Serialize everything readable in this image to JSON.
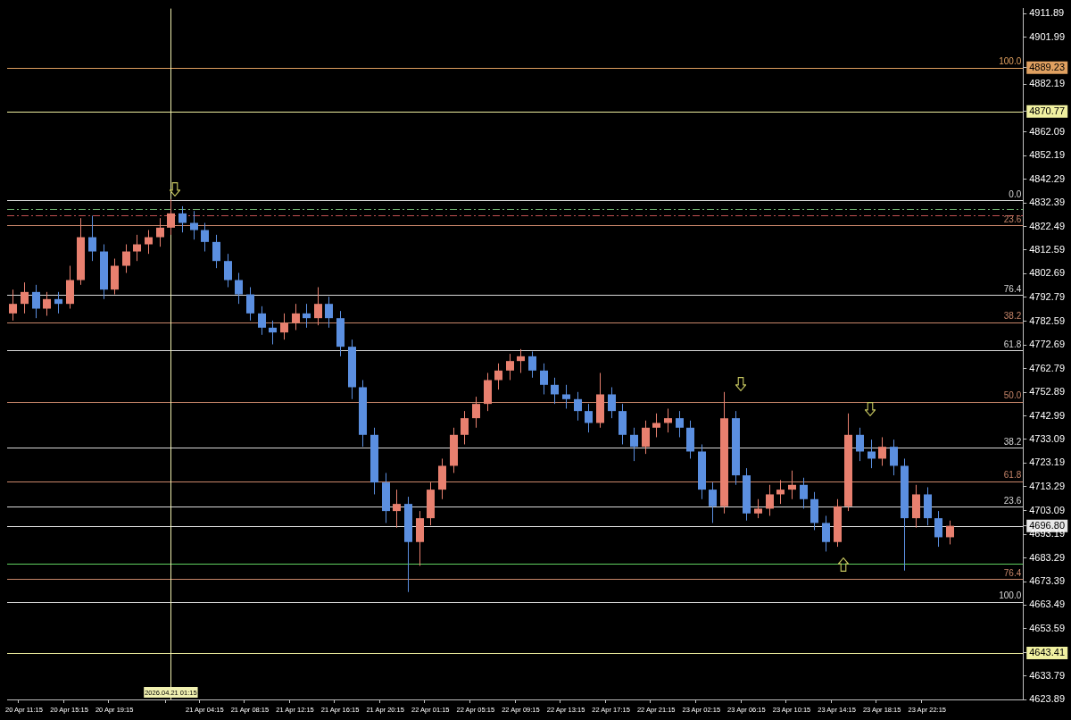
{
  "chart_data": {
    "type": "candlestick",
    "categories": [
      null,
      "20 Apr 11:15",
      null,
      null,
      null,
      "20 Apr 15:15",
      null,
      null,
      null,
      "20 Apr 19:15",
      null,
      null,
      null,
      null,
      "2026.04.21 01:15",
      null,
      null,
      "21 Apr 04:15",
      null,
      null,
      null,
      "21 Apr 08:15",
      null,
      null,
      null,
      "21 Apr 12:15",
      null,
      null,
      null,
      "21 Apr 16:15",
      null,
      null,
      null,
      "21 Apr 20:15",
      null,
      null,
      null,
      "22 Apr 01:15",
      null,
      null,
      null,
      "22 Apr 05:15",
      null,
      null,
      null,
      "22 Apr 09:15",
      null,
      null,
      null,
      "22 Apr 13:15",
      null,
      null,
      null,
      "22 Apr 17:15",
      null,
      null,
      null,
      "22 Apr 21:15",
      null,
      null,
      null,
      "23 Apr 02:15",
      null,
      null,
      null,
      "23 Apr 06:15",
      null,
      null,
      null,
      "23 Apr 10:15",
      null,
      null,
      null,
      "23 Apr 14:15",
      null,
      null,
      null,
      "23 Apr 18:15",
      null,
      null,
      null,
      "23 Apr 22:15",
      null,
      null,
      null,
      null,
      null,
      null,
      null,
      null
    ],
    "ohlc": [
      [
        4786,
        4796,
        4783,
        4790
      ],
      [
        4790,
        4799,
        4786,
        4795
      ],
      [
        4795,
        4798,
        4784,
        4788
      ],
      [
        4788,
        4795,
        4785,
        4792
      ],
      [
        4792,
        4795,
        4786,
        4790
      ],
      [
        4790,
        4806,
        4788,
        4800
      ],
      [
        4800,
        4826,
        4798,
        4818
      ],
      [
        4818,
        4827,
        4808,
        4812
      ],
      [
        4812,
        4815,
        4792,
        4796
      ],
      [
        4796,
        4809,
        4794,
        4806
      ],
      [
        4806,
        4815,
        4803,
        4812
      ],
      [
        4812,
        4819,
        4808,
        4815
      ],
      [
        4815,
        4821,
        4811,
        4818
      ],
      [
        4818,
        4826,
        4814,
        4822
      ],
      [
        4822,
        4834,
        4819,
        4828
      ],
      [
        4828,
        4831,
        4820,
        4824
      ],
      [
        4824,
        4829,
        4817,
        4821
      ],
      [
        4821,
        4824,
        4812,
        4816
      ],
      [
        4816,
        4819,
        4805,
        4808
      ],
      [
        4808,
        4811,
        4797,
        4800
      ],
      [
        4800,
        4803,
        4790,
        4794
      ],
      [
        4794,
        4797,
        4783,
        4786
      ],
      [
        4786,
        4789,
        4777,
        4780
      ],
      [
        4780,
        4783,
        4773,
        4778
      ],
      [
        4778,
        4786,
        4775,
        4782
      ],
      [
        4782,
        4790,
        4779,
        4786
      ],
      [
        4786,
        4790,
        4780,
        4784
      ],
      [
        4784,
        4797,
        4781,
        4790
      ],
      [
        4790,
        4793,
        4780,
        4784
      ],
      [
        4784,
        4787,
        4768,
        4772
      ],
      [
        4772,
        4775,
        4750,
        4755
      ],
      [
        4755,
        4758,
        4730,
        4735
      ],
      [
        4735,
        4738,
        4710,
        4715
      ],
      [
        4715,
        4719,
        4698,
        4703
      ],
      [
        4703,
        4712,
        4696,
        4706
      ],
      [
        4706,
        4709,
        4669,
        4690
      ],
      [
        4690,
        4703,
        4680,
        4700
      ],
      [
        4700,
        4715,
        4697,
        4712
      ],
      [
        4712,
        4725,
        4708,
        4722
      ],
      [
        4722,
        4738,
        4719,
        4735
      ],
      [
        4735,
        4745,
        4731,
        4742
      ],
      [
        4742,
        4751,
        4738,
        4748
      ],
      [
        4748,
        4761,
        4745,
        4758
      ],
      [
        4758,
        4765,
        4754,
        4762
      ],
      [
        4762,
        4769,
        4758,
        4766
      ],
      [
        4766,
        4771,
        4761,
        4768
      ],
      [
        4768,
        4770,
        4759,
        4762
      ],
      [
        4762,
        4765,
        4752,
        4756
      ],
      [
        4756,
        4759,
        4748,
        4752
      ],
      [
        4752,
        4756,
        4746,
        4750
      ],
      [
        4750,
        4753,
        4741,
        4745
      ],
      [
        4745,
        4748,
        4736,
        4740
      ],
      [
        4740,
        4761,
        4738,
        4752
      ],
      [
        4752,
        4755,
        4742,
        4745
      ],
      [
        4745,
        4748,
        4731,
        4735
      ],
      [
        4735,
        4738,
        4724,
        4730
      ],
      [
        4730,
        4741,
        4727,
        4738
      ],
      [
        4738,
        4744,
        4734,
        4740
      ],
      [
        4740,
        4746,
        4736,
        4742
      ],
      [
        4742,
        4745,
        4734,
        4738
      ],
      [
        4738,
        4741,
        4725,
        4728
      ],
      [
        4728,
        4731,
        4708,
        4712
      ],
      [
        4712,
        4715,
        4698,
        4705
      ],
      [
        4705,
        4753,
        4702,
        4742
      ],
      [
        4742,
        4745,
        4714,
        4718
      ],
      [
        4718,
        4721,
        4699,
        4702
      ],
      [
        4702,
        4708,
        4700,
        4704
      ],
      [
        4704,
        4714,
        4701,
        4710
      ],
      [
        4710,
        4716,
        4706,
        4712
      ],
      [
        4712,
        4720,
        4708,
        4714
      ],
      [
        4714,
        4717,
        4704,
        4708
      ],
      [
        4708,
        4711,
        4695,
        4698
      ],
      [
        4698,
        4701,
        4686,
        4690
      ],
      [
        4690,
        4708,
        4688,
        4705
      ],
      [
        4705,
        4744,
        4703,
        4735
      ],
      [
        4735,
        4738,
        4724,
        4728
      ],
      [
        4728,
        4733,
        4721,
        4725
      ],
      [
        4725,
        4734,
        4722,
        4730
      ],
      [
        4730,
        4733,
        4718,
        4722
      ],
      [
        4722,
        4725,
        4678,
        4700
      ],
      [
        4700,
        4714,
        4696,
        4710
      ],
      [
        4710,
        4713,
        4697,
        4700
      ],
      [
        4700,
        4703,
        4688,
        4692
      ],
      [
        4692,
        4699,
        4689,
        4696.8
      ],
      null,
      null,
      null,
      null,
      null,
      null
    ],
    "colors": [
      "#e8806f",
      "#e8806f",
      "#5b8fe0",
      "#e8806f",
      "#5b8fe0",
      "#e8806f",
      "#e8806f",
      "#5b8fe0",
      "#5b8fe0",
      "#e8806f",
      "#e8806f",
      "#e8806f",
      "#e8806f",
      "#e8806f",
      "#e8806f",
      "#5b8fe0",
      "#5b8fe0",
      "#5b8fe0",
      "#5b8fe0",
      "#5b8fe0",
      "#5b8fe0",
      "#5b8fe0",
      "#5b8fe0",
      "#5b8fe0",
      "#e8806f",
      "#e8806f",
      "#5b8fe0",
      "#e8806f",
      "#5b8fe0",
      "#5b8fe0",
      "#5b8fe0",
      "#5b8fe0",
      "#5b8fe0",
      "#5b8fe0",
      "#e8806f",
      "#5b8fe0",
      "#e8806f",
      "#e8806f",
      "#e8806f",
      "#e8806f",
      "#e8806f",
      "#e8806f",
      "#e8806f",
      "#e8806f",
      "#e8806f",
      "#e8806f",
      "#5b8fe0",
      "#5b8fe0",
      "#5b8fe0",
      "#5b8fe0",
      "#5b8fe0",
      "#5b8fe0",
      "#e8806f",
      "#5b8fe0",
      "#5b8fe0",
      "#5b8fe0",
      "#e8806f",
      "#e8806f",
      "#e8806f",
      "#5b8fe0",
      "#5b8fe0",
      "#5b8fe0",
      "#5b8fe0",
      "#e8806f",
      "#5b8fe0",
      "#5b8fe0",
      "#e8806f",
      "#e8806f",
      "#e8806f",
      "#e8806f",
      "#5b8fe0",
      "#5b8fe0",
      "#5b8fe0",
      "#e8806f",
      "#e8806f",
      "#5b8fe0",
      "#5b8fe0",
      "#e8806f",
      "#5b8fe0",
      "#5b8fe0",
      "#e8806f",
      "#5b8fe0",
      "#5b8fe0",
      "#e8806f",
      null,
      null,
      null,
      null,
      null,
      null
    ],
    "ylim": [
      4623.89,
      4914
    ],
    "yticks": [
      4911.89,
      4901.99,
      4889.23,
      4882.19,
      4870.77,
      4862.09,
      4852.19,
      4842.29,
      4832.39,
      4822.49,
      4812.59,
      4802.69,
      4792.79,
      4782.59,
      4772.69,
      4762.79,
      4752.89,
      4742.99,
      4733.09,
      4723.19,
      4713.29,
      4703.09,
      {
        "value": 4696.8,
        "label": "4696.80"
      },
      4693.19,
      4683.29,
      4673.39,
      4663.49,
      4653.59,
      4643.41,
      4633.79,
      4623.89
    ],
    "ref_lines": [
      {
        "axis": "y",
        "value": 4889.23,
        "color": "#e0a060"
      },
      {
        "axis": "y",
        "value": 4870.77,
        "color": "#f0f0a0"
      },
      {
        "axis": "y",
        "value": 4833.4,
        "color": "#d8d8d8"
      },
      {
        "axis": "y",
        "value": 4830,
        "color": "#70b070",
        "line_style": "dashed"
      },
      {
        "axis": "y",
        "value": 4827.1,
        "color": "#c05050",
        "line_style": "dashed"
      },
      {
        "axis": "y",
        "value": 4823,
        "color": "#c8866a"
      },
      {
        "axis": "y",
        "value": 4793.7,
        "color": "#d8d8d8"
      },
      {
        "axis": "y",
        "value": 4782.3,
        "color": "#c8866a"
      },
      {
        "axis": "y",
        "value": 4770.4,
        "color": "#d8d8d8"
      },
      {
        "axis": "y",
        "value": 4748.9,
        "color": "#c8866a"
      },
      {
        "axis": "y",
        "value": 4729.7,
        "color": "#d8d8d8"
      },
      {
        "axis": "y",
        "value": 4715.6,
        "color": "#c8866a"
      },
      {
        "axis": "y",
        "value": 4704.9,
        "color": "#d8d8d8"
      },
      {
        "axis": "y",
        "value": 4696.8,
        "color": "#e8e8e8"
      },
      {
        "axis": "y",
        "value": 4680.8,
        "color": "#60d060"
      },
      {
        "axis": "y",
        "value": 4674.5,
        "color": "#c8866a"
      },
      {
        "axis": "y",
        "value": 4664.9,
        "color": "#d8d8d8"
      },
      {
        "axis": "y",
        "value": 4643.41,
        "color": "#f0f0a0"
      },
      {
        "axis": "x",
        "value": "2026.04.21 01:15",
        "color": "#f0f0b0"
      }
    ],
    "annotations": [
      {
        "text": "100.0",
        "y": 4889.23
      },
      {
        "text": "0.0",
        "y": 4833.4
      },
      {
        "text": "23.6",
        "y": 4823
      },
      {
        "text": "76.4",
        "y": 4793.7
      },
      {
        "text": "38.2",
        "y": 4782.3
      },
      {
        "text": "61.8",
        "y": 4770.4
      },
      {
        "text": "50.0",
        "y": 4748.9
      },
      {
        "text": "38.2",
        "y": 4729.7
      },
      {
        "text": "61.8",
        "y": 4715.6
      },
      {
        "text": "23.6",
        "y": 4704.9
      },
      {
        "text": "76.4",
        "y": 4674.5
      },
      {
        "text": "100.0",
        "y": 4664.9
      }
    ],
    "grid": false,
    "legend": false
  }
}
